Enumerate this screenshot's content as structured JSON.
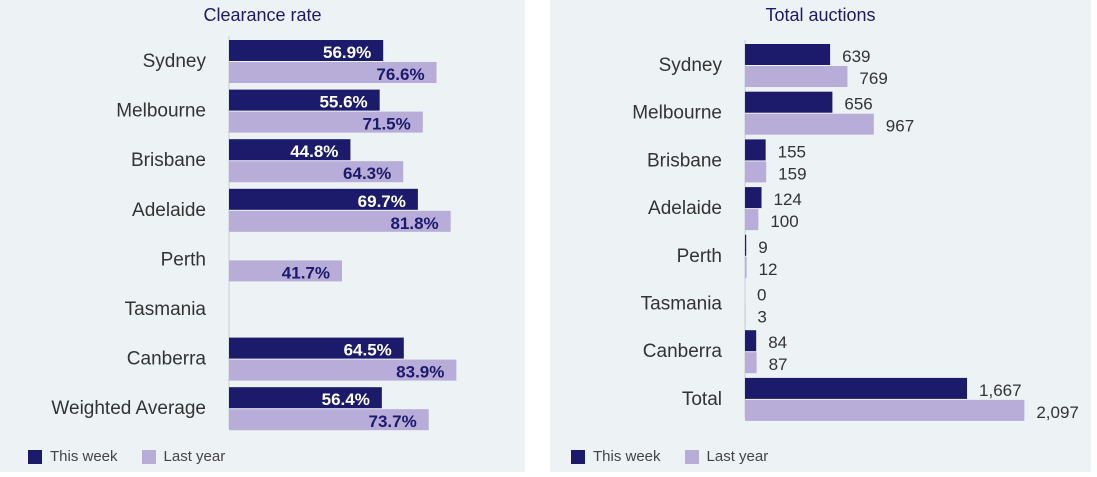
{
  "colors": {
    "this_week": "#1b1a6b",
    "last_year": "#b8acd8",
    "panel_bg": "#edf2f5"
  },
  "legend": {
    "this_week": "This week",
    "last_year": "Last year"
  },
  "chart_data": [
    {
      "type": "bar",
      "orientation": "horizontal",
      "title": "Clearance rate",
      "categories": [
        "Sydney",
        "Melbourne",
        "Brisbane",
        "Adelaide",
        "Perth",
        "Tasmania",
        "Canberra",
        "Weighted Average"
      ],
      "series": [
        {
          "name": "This week",
          "values": [
            56.9,
            55.6,
            44.8,
            69.7,
            null,
            null,
            64.5,
            56.4
          ],
          "labels": [
            "56.9%",
            "55.6%",
            "44.8%",
            "69.7%",
            "",
            "",
            "64.5%",
            "56.4%"
          ]
        },
        {
          "name": "Last year",
          "values": [
            76.6,
            71.5,
            64.3,
            81.8,
            41.7,
            null,
            83.9,
            73.7
          ],
          "labels": [
            "76.6%",
            "71.5%",
            "64.3%",
            "81.8%",
            "41.7%",
            "",
            "83.9%",
            "73.7%"
          ]
        }
      ],
      "xlim": [
        0,
        100
      ],
      "label_position": "inside-end"
    },
    {
      "type": "bar",
      "orientation": "horizontal",
      "title": "Total auctions",
      "categories": [
        "Sydney",
        "Melbourne",
        "Brisbane",
        "Adelaide",
        "Perth",
        "Tasmania",
        "Canberra",
        "Total"
      ],
      "series": [
        {
          "name": "This week",
          "values": [
            639,
            656,
            155,
            124,
            9,
            0,
            84,
            1667
          ],
          "labels": [
            "639",
            "656",
            "155",
            "124",
            "9",
            "0",
            "84",
            "1,667"
          ]
        },
        {
          "name": "Last year",
          "values": [
            769,
            967,
            159,
            100,
            12,
            3,
            87,
            2097
          ],
          "labels": [
            "769",
            "967",
            "159",
            "100",
            "12",
            "3",
            "87",
            "2,097"
          ]
        }
      ],
      "xlim": [
        0,
        2500
      ],
      "label_position": "outside-end"
    }
  ]
}
